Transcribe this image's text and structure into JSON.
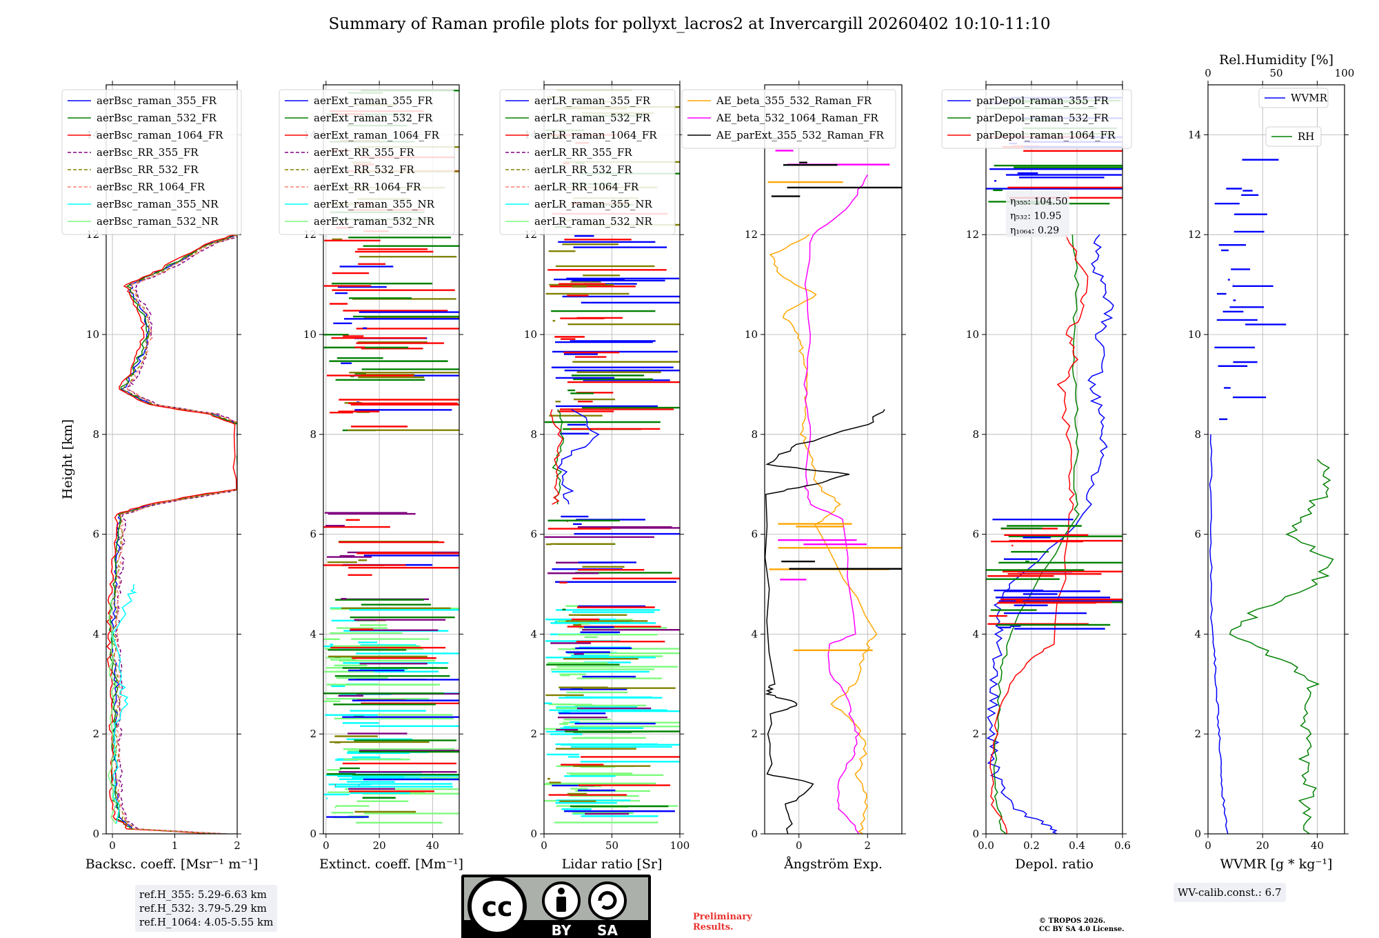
{
  "title": "Summary of Raman profile plots for pollyxt_lacros2 at Invercargill 20260402 10:10-11:10",
  "colors": {
    "blue": "#0000ff",
    "green": "#008000",
    "red": "#ff0000",
    "purple": "#800080",
    "olive": "#808000",
    "salmon": "#fa8072",
    "cyan": "#00ffff",
    "lightgreen": "#7cfc7c",
    "orange": "#ffa500",
    "magenta": "#ff00ff",
    "black": "#000000"
  },
  "chart_data": [
    {
      "type": "line",
      "title": "",
      "xlabel": "Backsc. coeff. [Msr⁻¹ m⁻¹]",
      "ylabel": "Height [km]",
      "xlim": [
        -0.1,
        2.0
      ],
      "ylim": [
        0,
        15
      ],
      "xticks": [
        0,
        1,
        2
      ],
      "xtick_labels": [
        "0",
        "1",
        "2"
      ],
      "yticks": [
        0,
        2,
        4,
        6,
        8,
        10,
        12,
        14
      ],
      "ytick_labels": [
        "0",
        "2",
        "4",
        "6",
        "8",
        "10",
        "12",
        "14"
      ],
      "grid": true,
      "legend_position": "top-left",
      "series": [
        {
          "name": "aerBsc_raman_355_FR",
          "color": "blue",
          "dash": false
        },
        {
          "name": "aerBsc_raman_532_FR",
          "color": "green",
          "dash": false
        },
        {
          "name": "aerBsc_raman_1064_FR",
          "color": "red",
          "dash": false
        },
        {
          "name": "aerBsc_RR_355_FR",
          "color": "purple",
          "dash": true
        },
        {
          "name": "aerBsc_RR_532_FR",
          "color": "olive",
          "dash": true
        },
        {
          "name": "aerBsc_RR_1064_FR",
          "color": "salmon",
          "dash": true
        },
        {
          "name": "aerBsc_raman_355_NR",
          "color": "cyan",
          "dash": false
        },
        {
          "name": "aerBsc_raman_532_NR",
          "color": "lightgreen",
          "dash": false
        }
      ],
      "profile": {
        "heights": [
          0,
          0.1,
          0.3,
          0.6,
          1.0,
          1.5,
          2.0,
          2.5,
          3.0,
          3.5,
          4.0,
          4.5,
          5.0,
          5.5,
          6.0,
          6.4,
          6.6,
          6.8,
          6.9,
          8.2,
          8.4,
          8.6,
          8.9,
          9.2,
          9.6,
          10.0,
          10.4,
          10.8,
          11.0,
          11.3,
          11.8,
          12.0
        ],
        "values": [
          1.7,
          0.3,
          0.1,
          0.05,
          0.02,
          0.02,
          0.02,
          0.03,
          0.05,
          0.0,
          -0.02,
          0.0,
          0.02,
          0.05,
          0.08,
          0.1,
          0.6,
          1.5,
          2.0,
          2.0,
          1.6,
          0.6,
          0.15,
          0.3,
          0.45,
          0.55,
          0.5,
          0.3,
          0.25,
          0.8,
          1.5,
          2.0
        ]
      }
    },
    {
      "type": "line",
      "xlabel": "Extinct. coeff. [Mm⁻¹]",
      "xlim": [
        -1,
        50
      ],
      "ylim": [
        0,
        15
      ],
      "xticks": [
        0,
        20,
        40
      ],
      "xtick_labels": [
        "0",
        "20",
        "40"
      ],
      "yticks": [
        0,
        2,
        4,
        6,
        8,
        10,
        12,
        14
      ],
      "ytick_labels": [
        "0",
        "2",
        "4",
        "6",
        "8",
        "10",
        "12",
        "14"
      ],
      "grid": true,
      "legend_position": "top-left",
      "series": [
        {
          "name": "aerExt_raman_355_FR",
          "color": "blue",
          "dash": false
        },
        {
          "name": "aerExt_raman_532_FR",
          "color": "green",
          "dash": false
        },
        {
          "name": "aerExt_raman_1064_FR",
          "color": "red",
          "dash": false
        },
        {
          "name": "aerExt_RR_355_FR",
          "color": "purple",
          "dash": true
        },
        {
          "name": "aerExt_RR_532_FR",
          "color": "olive",
          "dash": true
        },
        {
          "name": "aerExt_RR_1064_FR",
          "color": "salmon",
          "dash": true
        },
        {
          "name": "aerExt_raman_355_NR",
          "color": "cyan",
          "dash": false
        },
        {
          "name": "aerExt_raman_532_NR",
          "color": "lightgreen",
          "dash": false
        }
      ]
    },
    {
      "type": "line",
      "xlabel": "Lidar ratio [Sr]",
      "xlim": [
        0,
        100
      ],
      "ylim": [
        0,
        15
      ],
      "xticks": [
        0,
        50,
        100
      ],
      "xtick_labels": [
        "0",
        "50",
        "100"
      ],
      "yticks": [
        0,
        2,
        4,
        6,
        8,
        10,
        12,
        14
      ],
      "ytick_labels": [
        "0",
        "2",
        "4",
        "6",
        "8",
        "10",
        "12",
        "14"
      ],
      "grid": true,
      "legend_position": "top-left",
      "series": [
        {
          "name": "aerLR_raman_355_FR",
          "color": "blue",
          "dash": false
        },
        {
          "name": "aerLR_raman_532_FR",
          "color": "green",
          "dash": false
        },
        {
          "name": "aerLR_raman_1064_FR",
          "color": "red",
          "dash": false
        },
        {
          "name": "aerLR_RR_355_FR",
          "color": "purple",
          "dash": true
        },
        {
          "name": "aerLR_RR_532_FR",
          "color": "olive",
          "dash": true
        },
        {
          "name": "aerLR_RR_1064_FR",
          "color": "salmon",
          "dash": true
        },
        {
          "name": "aerLR_raman_355_NR",
          "color": "cyan",
          "dash": false
        },
        {
          "name": "aerLR_raman_532_NR",
          "color": "lightgreen",
          "dash": false
        }
      ]
    },
    {
      "type": "line",
      "xlabel": "Ångström Exp.",
      "xlim": [
        -1,
        3
      ],
      "ylim": [
        0,
        15
      ],
      "xticks": [
        0,
        2
      ],
      "xtick_labels": [
        "0",
        "2"
      ],
      "yticks": [
        0,
        2,
        4,
        6,
        8,
        10,
        12
      ],
      "ytick_labels": [
        "0",
        "2",
        "4",
        "6",
        "8",
        "10",
        "12"
      ],
      "grid": true,
      "legend_position": "top-left",
      "series": [
        {
          "name": "AE_beta_355_532_Raman_FR",
          "color": "orange",
          "dash": false
        },
        {
          "name": "AE_beta_532_1064_Raman_FR",
          "color": "magenta",
          "dash": false
        },
        {
          "name": "AE_parExt_355_532_Raman_FR",
          "color": "black",
          "dash": false
        }
      ],
      "profiles": [
        {
          "heights": [
            0,
            0.3,
            0.8,
            1.2,
            1.8,
            2.2,
            2.6,
            3.0,
            3.6,
            4.0,
            6.2,
            6.6,
            7.0,
            7.6,
            8.0,
            8.6,
            9.0,
            9.6,
            10.0,
            10.4,
            10.8,
            11.2,
            11.6,
            12.0
          ],
          "values": [
            1.8,
            1.9,
            2.0,
            1.7,
            2.0,
            1.6,
            1.0,
            1.6,
            1.9,
            2.2,
            0.5,
            1.2,
            0.5,
            0.3,
            0.1,
            0.2,
            0.3,
            0.1,
            0.0,
            -0.5,
            0.5,
            -0.6,
            -0.8,
            0.3
          ]
        },
        {
          "heights": [
            0,
            0.5,
            1.0,
            1.6,
            2.0,
            2.4,
            2.8,
            3.2,
            3.8,
            4.0,
            6.3,
            6.6,
            7.0,
            8.0,
            9.0,
            10.0,
            11.0,
            12.0,
            12.6,
            13.2
          ],
          "values": [
            1.8,
            1.2,
            1.1,
            1.6,
            1.7,
            1.5,
            1.4,
            0.9,
            0.9,
            1.6,
            1.3,
            0.3,
            0.2,
            0.3,
            0.2,
            0.3,
            0.2,
            0.4,
            1.5,
            2.0
          ]
        }
      ]
    },
    {
      "type": "line",
      "xlabel": "Depol. ratio",
      "xlim": [
        0,
        0.6
      ],
      "ylim": [
        0,
        15
      ],
      "xticks": [
        0.0,
        0.2,
        0.4,
        0.6
      ],
      "xtick_labels": [
        "0.0",
        "0.2",
        "0.4",
        "0.6"
      ],
      "yticks": [
        0,
        2,
        4,
        6,
        8,
        10,
        12
      ],
      "ytick_labels": [
        "0",
        "2",
        "4",
        "6",
        "8",
        "10",
        "12"
      ],
      "grid": true,
      "legend_position": "top-left",
      "series": [
        {
          "name": "parDepol_raman_355_FR",
          "color": "blue",
          "dash": false
        },
        {
          "name": "parDepol_raman_532_FR",
          "color": "green",
          "dash": false
        },
        {
          "name": "parDepol_raman_1064_FR",
          "color": "red",
          "dash": false
        }
      ],
      "annotation_lines": [
        "η₃₅₅: 104.50",
        "η₅₃₂: 10.95",
        "η₁₀₆₄: 0.29"
      ],
      "profiles": [
        {
          "heights": [
            0,
            0.2,
            0.5,
            1.0,
            1.5,
            2.0,
            2.5,
            3.0,
            3.5,
            4.0,
            4.5,
            5.0,
            6.4,
            7.0,
            7.5,
            8.0,
            8.5,
            9.0,
            9.5,
            10.0,
            10.5,
            11.0,
            11.5,
            12.0
          ],
          "values": [
            0.32,
            0.25,
            0.12,
            0.05,
            0.03,
            0.03,
            0.03,
            0.04,
            0.05,
            0.06,
            0.05,
            0.1,
            0.45,
            0.47,
            0.5,
            0.52,
            0.5,
            0.46,
            0.52,
            0.5,
            0.55,
            0.5,
            0.48,
            0.5
          ]
        },
        {
          "heights": [
            0,
            0.5,
            1.0,
            2.0,
            3.0,
            3.5,
            4.0,
            6.4,
            7.0,
            8.0,
            9.0,
            10.0,
            11.0,
            12.0
          ],
          "values": [
            0.08,
            0.05,
            0.04,
            0.05,
            0.06,
            0.08,
            0.1,
            0.4,
            0.39,
            0.4,
            0.39,
            0.38,
            0.4,
            0.38
          ]
        },
        {
          "heights": [
            0,
            0.5,
            1.0,
            2.0,
            3.0,
            3.5,
            3.8,
            6.4,
            7.0,
            8.0,
            9.0,
            9.5,
            10.0,
            10.5,
            11.0,
            12.0
          ],
          "values": [
            0.1,
            0.04,
            0.03,
            0.04,
            0.1,
            0.2,
            0.3,
            0.38,
            0.37,
            0.36,
            0.33,
            0.4,
            0.36,
            0.42,
            0.45,
            0.35
          ]
        }
      ]
    },
    {
      "type": "line",
      "xlabel": "WVMR [g * kg⁻¹]",
      "x2label": "Rel.Humidity [%]",
      "xlim": [
        0,
        50
      ],
      "x2lim": [
        0,
        100
      ],
      "ylim": [
        0,
        15
      ],
      "xticks": [
        0,
        20,
        40
      ],
      "xtick_labels": [
        "0",
        "20",
        "40"
      ],
      "x2ticks": [
        0,
        50,
        100
      ],
      "x2tick_labels": [
        "0",
        "50",
        "100"
      ],
      "yticks": [
        0,
        2,
        4,
        6,
        8,
        10,
        12,
        14
      ],
      "ytick_labels": [
        "0",
        "2",
        "4",
        "6",
        "8",
        "10",
        "12",
        "14"
      ],
      "grid": true,
      "legend_position": "top-right",
      "series": [
        {
          "name": "WVMR",
          "color": "blue",
          "dash": false
        },
        {
          "name": "RH",
          "color": "green",
          "dash": false
        }
      ],
      "profiles": [
        {
          "heights": [
            0,
            0.5,
            1.0,
            1.5,
            2.0,
            2.5,
            3.0,
            3.5,
            4.0,
            5.0,
            6.0,
            7.0,
            8.0
          ],
          "values": [
            7,
            6,
            5,
            4.5,
            4,
            3.5,
            3,
            2.5,
            1.5,
            1.2,
            1.0,
            1.0,
            1.0
          ]
        },
        {
          "heights": [
            0,
            0.5,
            1.0,
            1.5,
            2.0,
            2.5,
            3.0,
            3.5,
            4.0,
            4.5,
            5.0,
            5.5,
            6.0,
            6.5,
            7.0,
            7.5
          ],
          "values": [
            70,
            72,
            74,
            72,
            75,
            70,
            80,
            50,
            20,
            35,
            80,
            90,
            60,
            75,
            90,
            80
          ]
        }
      ]
    }
  ],
  "info": {
    "ref_lines": [
      "ref.H_355: 5.29-6.63 km",
      "ref.H_532: 3.79-5.29 km",
      "ref.H_1064: 4.05-5.55 km"
    ],
    "wv_calib": "WV-calib.const.: 6.7",
    "prelim_lines": [
      "Preliminary",
      "Results."
    ],
    "copyright_lines": [
      "© TROPOS 2026.",
      "CC BY SA 4.0 License."
    ],
    "cc_badge": {
      "top": "cc",
      "left": "BY",
      "right": "SA"
    }
  }
}
